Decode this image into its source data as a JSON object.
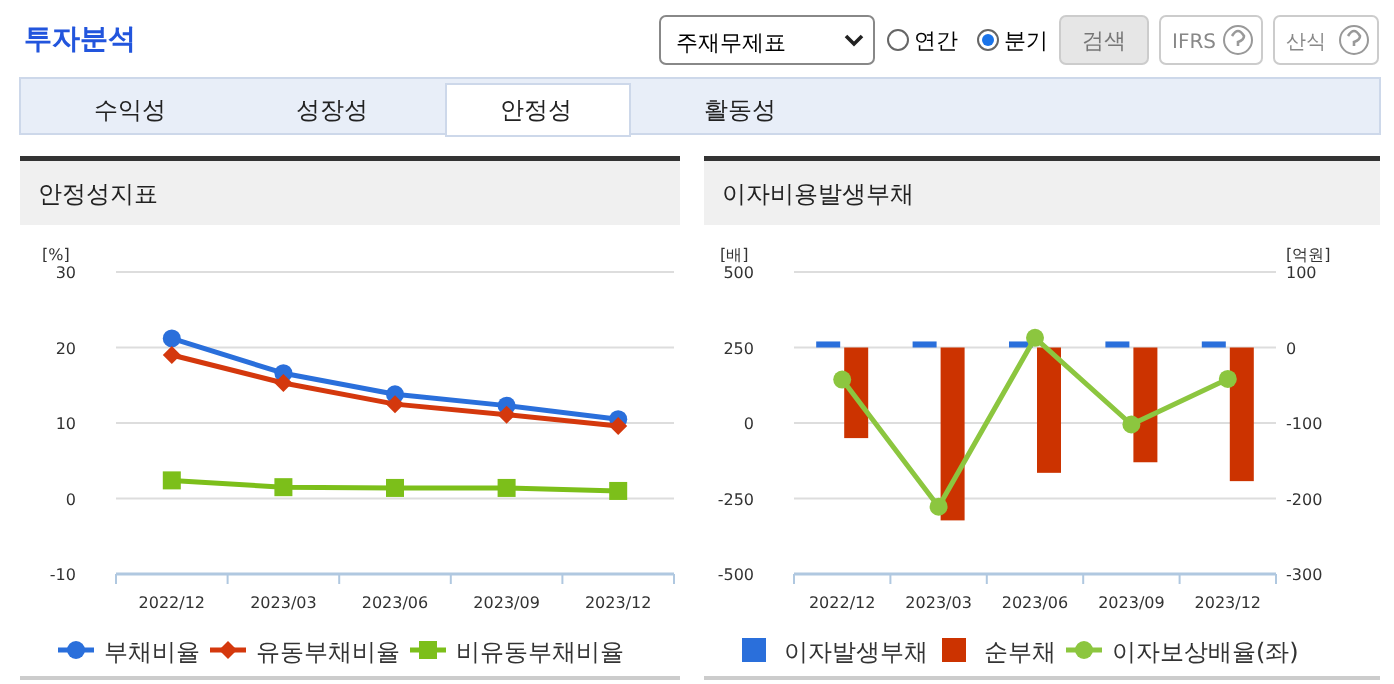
{
  "chart_data": [
    {
      "type": "other",
      "title": "투자분석",
      "annotations": [
        "주재무제표",
        "연간",
        "분기",
        "검색",
        "IFRS",
        "산식",
        "수익성",
        "성장성",
        "안정성",
        "활동성"
      ]
    },
    {
      "type": "line",
      "title": "안정성지표",
      "ylabel": "[%]",
      "categories": [
        "2022/12",
        "2023/03",
        "2023/06",
        "2023/09",
        "2023/12"
      ],
      "ylim": [
        -10,
        30
      ],
      "yticks": [
        -10,
        0,
        10,
        20,
        30
      ],
      "grid": "y",
      "legend": "bottom",
      "series": [
        {
          "name": "부채비율",
          "color": "#2a6fdb",
          "marker": "circle",
          "values": [
            21.2,
            16.6,
            13.8,
            12.3,
            10.5
          ]
        },
        {
          "name": "유동부채비율",
          "color": "#d4380d",
          "marker": "diamond",
          "values": [
            19.0,
            15.3,
            12.5,
            11.1,
            9.6
          ]
        },
        {
          "name": "비유동부채비율",
          "color": "#7cbf1a",
          "marker": "square",
          "values": [
            2.4,
            1.5,
            1.4,
            1.4,
            1.0
          ]
        }
      ]
    },
    {
      "type": "bar",
      "title": "이자비용발생부채",
      "ylabel": "[배]",
      "y2label": "[억원]",
      "categories": [
        "2022/12",
        "2023/03",
        "2023/06",
        "2023/09",
        "2023/12"
      ],
      "ylim": [
        -500,
        500
      ],
      "yticks": [
        -500,
        -250,
        0,
        250,
        500
      ],
      "y2lim": [
        -300,
        100
      ],
      "y2ticks": [
        -300,
        -200,
        -100,
        0,
        100
      ],
      "grid": "y",
      "legend": "bottom",
      "series": [
        {
          "name": "이자발생부채",
          "type": "bar",
          "axis": "y2",
          "color": "#2a6fdb",
          "values": [
            8,
            8,
            8,
            8,
            8
          ]
        },
        {
          "name": "순부채",
          "type": "bar",
          "axis": "y2",
          "color": "#cc3300",
          "values": [
            -120,
            -229,
            -166,
            -152,
            -177
          ]
        },
        {
          "name": "이자보상배율(좌)",
          "type": "line",
          "axis": "y",
          "color": "#8cc63f",
          "marker": "circle",
          "values": [
            144,
            -277,
            282,
            -5,
            146
          ]
        }
      ]
    }
  ]
}
